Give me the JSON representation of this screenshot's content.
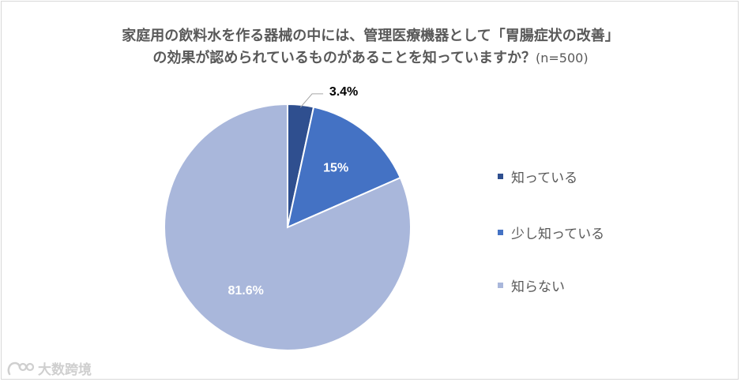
{
  "title": {
    "line1": "家庭用の飲料水を作る器械の中には、管理医療機器として「胃腸症状の改善」",
    "line2": "の効果が認められているものがあることを知っていますか？",
    "n_label": "(n=500)"
  },
  "chart_data": {
    "type": "pie",
    "categories": [
      "知っている",
      "少し知っている",
      "知らない"
    ],
    "values": [
      3.4,
      15,
      81.6
    ],
    "data_labels": [
      "3.4%",
      "15%",
      "81.6%"
    ],
    "colors": [
      "#2f4f8f",
      "#4472c4",
      "#a9b7db"
    ],
    "legend_position": "right"
  },
  "watermark": {
    "text": "大数跨境"
  }
}
